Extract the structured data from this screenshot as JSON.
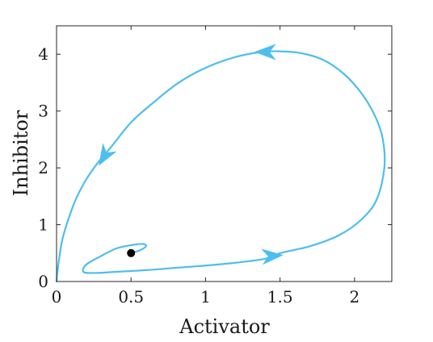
{
  "chart_data": {
    "type": "line",
    "title": "",
    "xlabel": "Activator",
    "ylabel": "Inhibitor",
    "xlim": [
      0,
      2.25
    ],
    "ylim": [
      0,
      4.5
    ],
    "grid": false,
    "x_ticks": [
      0,
      0.5,
      1,
      1.5,
      2
    ],
    "x_tick_labels": [
      "0",
      "0.5",
      "1",
      "1.5",
      "2"
    ],
    "y_ticks": [
      0,
      1,
      2,
      3,
      4
    ],
    "y_tick_labels": [
      "0",
      "1",
      "2",
      "3",
      "4"
    ],
    "series": [
      {
        "color": "#4DBEEE",
        "x": [
          0.5,
          0.56,
          0.6,
          0.58,
          0.5,
          0.4,
          0.3,
          0.2,
          0.18,
          0.25,
          0.4,
          0.6,
          0.8,
          1.0,
          1.2,
          1.4,
          1.5,
          1.7,
          1.9,
          2.05,
          2.15,
          2.2,
          2.19,
          2.14,
          2.05,
          1.93,
          1.79,
          1.64,
          1.5,
          1.38,
          1.2,
          1.0,
          0.82,
          0.65,
          0.5,
          0.37,
          0.28,
          0.2,
          0.13,
          0.08,
          0.04,
          0.02,
          0.005,
          0.0
        ],
        "y": [
          0.5,
          0.55,
          0.62,
          0.66,
          0.64,
          0.58,
          0.45,
          0.3,
          0.17,
          0.15,
          0.17,
          0.2,
          0.24,
          0.28,
          0.33,
          0.4,
          0.5,
          0.62,
          0.82,
          1.1,
          1.45,
          2.0,
          2.5,
          2.9,
          3.3,
          3.65,
          3.9,
          4.02,
          4.05,
          4.04,
          3.95,
          3.76,
          3.5,
          3.15,
          2.8,
          2.38,
          2.1,
          1.8,
          1.45,
          1.1,
          0.75,
          0.45,
          0.15,
          0.0
        ]
      }
    ],
    "arrows": [
      {
        "x": 1.45,
        "y": 0.45,
        "dx": 1,
        "dy": 0.08
      },
      {
        "x": 1.4,
        "y": 4.04,
        "dx": -1,
        "dy": 0
      },
      {
        "x": 0.32,
        "y": 2.2,
        "dx": -0.6,
        "dy": -1
      }
    ],
    "marker": {
      "x": 0.5,
      "y": 0.5,
      "color": "#000000"
    }
  }
}
